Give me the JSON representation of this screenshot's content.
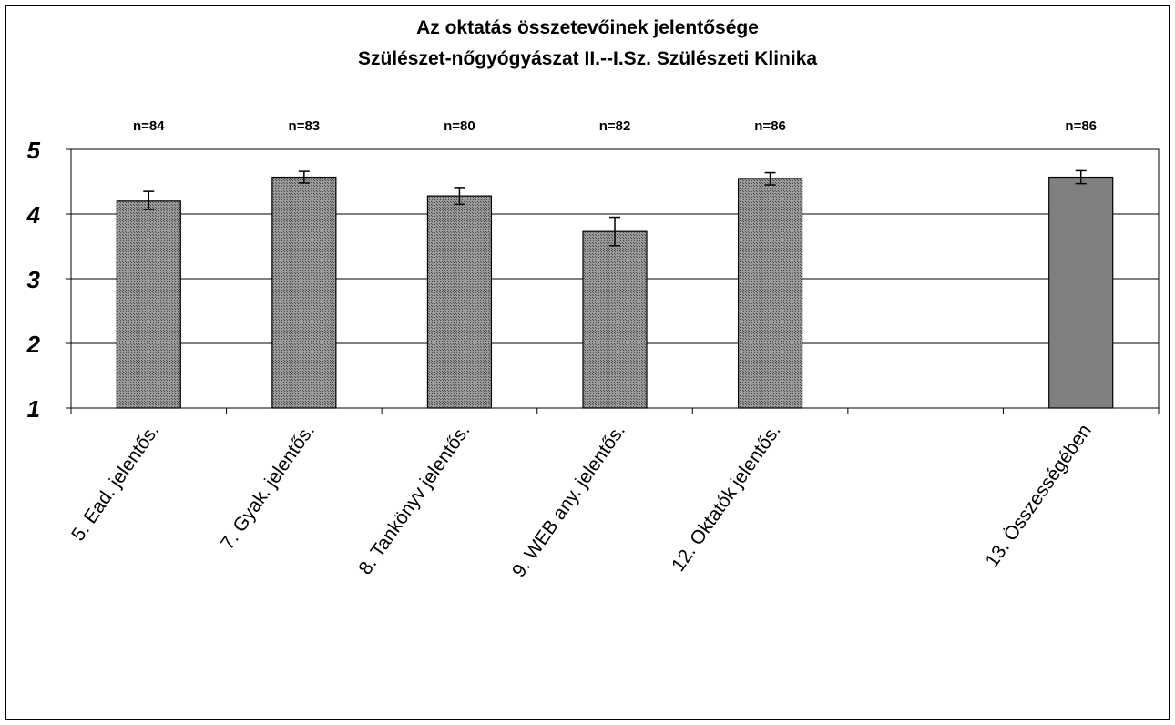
{
  "chart_data": {
    "type": "bar",
    "title": "Az oktatás összetevőinek jelentősége",
    "subtitle": "Szülészet-nőgyógyászat II.--I.Sz. Szülészeti Klinika",
    "categories": [
      "5. Ead. jelentős.",
      "7. Gyak. jelentős.",
      "8. Tankönyv jelentős.",
      "9. WEB any. jelentős.",
      "12. Oktatók jelentős.",
      "",
      "13. Összességében"
    ],
    "values": [
      4.2,
      4.57,
      4.28,
      3.73,
      4.55,
      null,
      4.57
    ],
    "error_low": [
      4.07,
      4.48,
      4.15,
      3.51,
      4.45,
      null,
      4.47
    ],
    "error_high": [
      4.35,
      4.66,
      4.41,
      3.95,
      4.64,
      null,
      4.67
    ],
    "n_labels": [
      "n=84",
      "n=83",
      "n=80",
      "n=82",
      "n=86",
      "",
      "n=86"
    ],
    "bar_fills": [
      "hatched",
      "hatched",
      "hatched",
      "hatched",
      "hatched",
      null,
      "solid"
    ],
    "colors": {
      "hatched_bar": "#8a8a8a",
      "solid_bar": "#808080",
      "gridline": "#000000"
    },
    "ylim": [
      1,
      5
    ],
    "yticks": [
      "1",
      "2",
      "3",
      "4",
      "5"
    ],
    "grid": true,
    "legend": "none",
    "xlabel": "",
    "ylabel": ""
  }
}
